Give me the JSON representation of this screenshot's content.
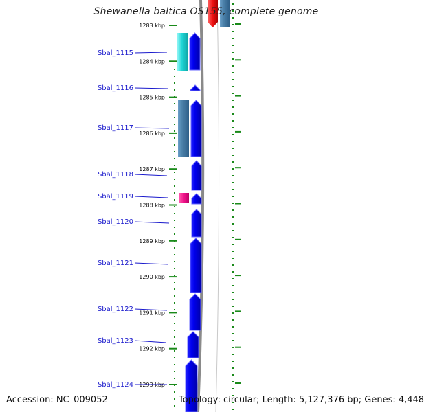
{
  "title": "Shewanella baltica OS155, complete genome",
  "footer": {
    "accession": "Accession: NC_009052",
    "topology": "Topology: circular; Length: 5,127,376 bp; Genes: 4,448"
  },
  "axis": {
    "unit": "kbp",
    "ticks": [
      1283,
      1284,
      1285,
      1286,
      1287,
      1288,
      1289,
      1290,
      1291,
      1292,
      1293
    ]
  },
  "genes": [
    {
      "name": "Sbal_1115"
    },
    {
      "name": "Sbal_1116"
    },
    {
      "name": "Sbal_1117"
    },
    {
      "name": "Sbal_1118"
    },
    {
      "name": "Sbal_1119"
    },
    {
      "name": "Sbal_1120"
    },
    {
      "name": "Sbal_1121"
    },
    {
      "name": "Sbal_1122"
    },
    {
      "name": "Sbal_1123"
    },
    {
      "name": "Sbal_1124"
    }
  ],
  "colors": {
    "cds": "#0000ee",
    "cds_edge": "#5555ff",
    "steelblue": "#4a7fa8",
    "cyan": "#1fd6d6",
    "magenta": "#ee1188",
    "red": "#ee1111",
    "ruler": "#1a8a1a",
    "backbone": "#888888",
    "label_line": "#1a1acc"
  }
}
